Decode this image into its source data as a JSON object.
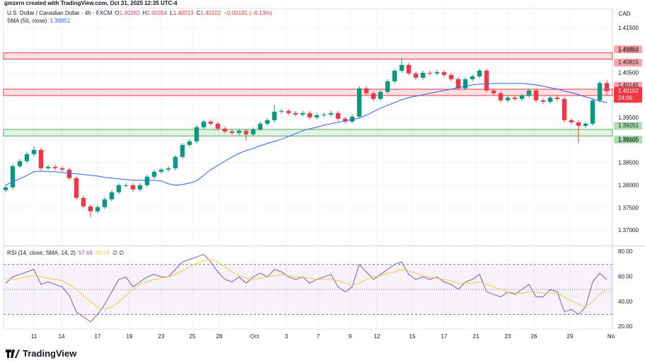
{
  "header": {
    "attribution": "gmzern created with TradingView.com, Oct 31, 2025 12:35 UTC-4"
  },
  "footer": {
    "logo": "TradingView"
  },
  "chart_data": [
    {
      "type": "candlestick",
      "title": "U.S. Dollar / Canadian Dollar · 4h · FXCM",
      "currency": "CAD",
      "ohlc_prefixes": [
        "O",
        "H",
        "L",
        "C"
      ],
      "change_label": "−0.00181 (−0.13%)",
      "countdown": "24:06",
      "up_color": "#089981",
      "down_color": "#f23645",
      "grid": true,
      "open": [
        1.379,
        1.37963,
        1.38435,
        1.38545,
        1.38702,
        1.38796,
        1.38387,
        1.38419,
        1.38387,
        1.38356,
        1.38167,
        1.37727,
        1.37539,
        1.37429,
        1.37523,
        1.37696,
        1.37853,
        1.3801,
        1.3801,
        1.37916,
        1.3801,
        1.38199,
        1.38309,
        1.38356,
        1.38387,
        1.38639,
        1.38906,
        1.38985,
        1.39299,
        1.39425,
        1.39378,
        1.39268,
        1.39205,
        1.39173,
        1.39221,
        1.39142,
        1.39252,
        1.39378,
        1.39456,
        1.39645,
        1.39661,
        1.39614,
        1.39582,
        1.39614,
        1.39519,
        1.39566,
        1.39582,
        1.39614,
        1.39488,
        1.39425,
        1.39535,
        1.40164,
        1.40054,
        1.39928,
        1.40085,
        1.40321,
        1.40557,
        1.40683,
        1.40494,
        1.404,
        1.4051,
        1.40494,
        1.40525,
        1.40463,
        1.40368,
        1.40164,
        1.40368,
        1.40431,
        1.40557,
        1.40117,
        1.40054,
        1.39897,
        1.39959,
        1.39928,
        1.40007,
        1.40117,
        1.39897,
        1.39865,
        1.39959,
        1.39928,
        1.39456,
        1.39409,
        1.39331,
        1.39378,
        1.39897,
        1.40283
      ],
      "high": [
        1.38008,
        1.3848,
        1.3859,
        1.38747,
        1.3888,
        1.38841,
        1.38464,
        1.38464,
        1.38432,
        1.38401,
        1.38212,
        1.37772,
        1.37584,
        1.37568,
        1.37741,
        1.37898,
        1.38055,
        1.38055,
        1.38055,
        1.38055,
        1.38244,
        1.38354,
        1.38401,
        1.38432,
        1.38684,
        1.38951,
        1.3903,
        1.39344,
        1.3947,
        1.3947,
        1.39423,
        1.39313,
        1.3925,
        1.39266,
        1.39266,
        1.39297,
        1.39423,
        1.39501,
        1.398,
        1.39706,
        1.39706,
        1.39659,
        1.39659,
        1.39659,
        1.39611,
        1.39627,
        1.39659,
        1.39659,
        1.39533,
        1.3958,
        1.40209,
        1.40209,
        1.40099,
        1.4013,
        1.40366,
        1.40602,
        1.4085,
        1.40728,
        1.40539,
        1.40555,
        1.40555,
        1.4057,
        1.4057,
        1.40508,
        1.40413,
        1.40413,
        1.40476,
        1.40602,
        1.40602,
        1.40162,
        1.40099,
        1.40004,
        1.40004,
        1.40052,
        1.40162,
        1.40162,
        1.39942,
        1.40004,
        1.40004,
        1.39973,
        1.39501,
        1.39454,
        1.39423,
        1.39942,
        1.40328,
        1.40354
      ],
      "low": [
        1.37855,
        1.37918,
        1.3839,
        1.385,
        1.38657,
        1.38342,
        1.38342,
        1.38342,
        1.38311,
        1.38122,
        1.37682,
        1.37494,
        1.373,
        1.37384,
        1.37478,
        1.37651,
        1.37808,
        1.37965,
        1.37871,
        1.37871,
        1.37965,
        1.38154,
        1.38264,
        1.38311,
        1.38342,
        1.38594,
        1.38861,
        1.3894,
        1.39254,
        1.39333,
        1.39223,
        1.3916,
        1.39128,
        1.39128,
        1.39,
        1.39097,
        1.39207,
        1.39333,
        1.39411,
        1.396,
        1.39569,
        1.39537,
        1.39537,
        1.39474,
        1.39474,
        1.39521,
        1.39537,
        1.39443,
        1.3938,
        1.3938,
        1.3949,
        1.40009,
        1.39883,
        1.39883,
        1.4004,
        1.40276,
        1.40512,
        1.40449,
        1.40355,
        1.40355,
        1.40449,
        1.40449,
        1.40418,
        1.40323,
        1.40119,
        1.40119,
        1.40323,
        1.40386,
        1.40072,
        1.40009,
        1.39852,
        1.39852,
        1.39883,
        1.39883,
        1.39962,
        1.39852,
        1.3982,
        1.3982,
        1.39883,
        1.39411,
        1.39364,
        1.3895,
        1.39286,
        1.39333,
        1.39852,
        1.40013
      ],
      "close": [
        1.37963,
        1.38435,
        1.38545,
        1.38702,
        1.38796,
        1.38387,
        1.38419,
        1.38387,
        1.38356,
        1.38167,
        1.37727,
        1.37539,
        1.37429,
        1.37523,
        1.37696,
        1.37853,
        1.3801,
        1.3801,
        1.37916,
        1.3801,
        1.38199,
        1.38309,
        1.38356,
        1.38387,
        1.38639,
        1.38906,
        1.38985,
        1.39299,
        1.39425,
        1.39378,
        1.39268,
        1.39205,
        1.39173,
        1.39221,
        1.39142,
        1.39252,
        1.39378,
        1.39456,
        1.39645,
        1.39661,
        1.39614,
        1.39582,
        1.39614,
        1.39519,
        1.39566,
        1.39582,
        1.39614,
        1.39488,
        1.39425,
        1.39535,
        1.40164,
        1.40054,
        1.39928,
        1.40085,
        1.40321,
        1.40557,
        1.40683,
        1.40494,
        1.404,
        1.4051,
        1.40494,
        1.40525,
        1.40463,
        1.40368,
        1.40164,
        1.40368,
        1.40431,
        1.40557,
        1.40117,
        1.40054,
        1.39897,
        1.39959,
        1.39928,
        1.40007,
        1.40117,
        1.39897,
        1.39865,
        1.39959,
        1.39928,
        1.39456,
        1.39409,
        1.39331,
        1.39378,
        1.39897,
        1.40283,
        1.40102
      ],
      "overlays": [
        {
          "name": "SMA (50, close)",
          "color": "#2962ff",
          "values": [
            1.3801,
            1.38089,
            1.38152,
            1.3823,
            1.38309,
            1.38325,
            1.38309,
            1.38309,
            1.38293,
            1.38277,
            1.38262,
            1.38246,
            1.3823,
            1.38215,
            1.38183,
            1.38167,
            1.38152,
            1.38136,
            1.3812,
            1.3812,
            1.3812,
            1.3812,
            1.38105,
            1.38042,
            1.3801,
            1.38026,
            1.38057,
            1.38105,
            1.3823,
            1.38356,
            1.3845,
            1.38545,
            1.38639,
            1.38718,
            1.3878,
            1.38828,
            1.38891,
            1.38938,
            1.38985,
            1.39032,
            1.39095,
            1.39158,
            1.39221,
            1.39268,
            1.39299,
            1.39346,
            1.39378,
            1.39409,
            1.39441,
            1.39472,
            1.39504,
            1.39566,
            1.39645,
            1.39724,
            1.39787,
            1.39849,
            1.39912,
            1.39959,
            1.39991,
            1.40022,
            1.40054,
            1.40085,
            1.40117,
            1.40148,
            1.4018,
            1.40211,
            1.40242,
            1.40258,
            1.40258,
            1.40274,
            1.40274,
            1.40274,
            1.40274,
            1.40274,
            1.40258,
            1.40242,
            1.40211,
            1.4018,
            1.40148,
            1.40101,
            1.4007,
            1.40022,
            1.39975,
            1.39928,
            1.39881,
            1.39851
          ]
        }
      ],
      "zones": [
        {
          "low": 1.40815,
          "high": 1.40953,
          "color": "#f23645"
        },
        {
          "low": 1.40004,
          "high": 1.40145,
          "color": "#f23645"
        },
        {
          "low": 1.39105,
          "high": 1.39251,
          "color": "#4caf50"
        }
      ],
      "xlim": [
        -0.3,
        85.8
      ],
      "xticks": [
        {
          "value": 4,
          "label": "11"
        },
        {
          "value": 7.9,
          "label": "14"
        },
        {
          "value": 13,
          "label": "17"
        },
        {
          "value": 17.5,
          "label": "19"
        },
        {
          "value": 22,
          "label": "23"
        },
        {
          "value": 26.4,
          "label": "25"
        },
        {
          "value": 30.2,
          "label": "28"
        },
        {
          "value": 35.2,
          "label": "Oct"
        },
        {
          "value": 39.7,
          "label": "3"
        },
        {
          "value": 44.2,
          "label": "7"
        },
        {
          "value": 48.7,
          "label": "9"
        },
        {
          "value": 52.5,
          "label": "12"
        },
        {
          "value": 57.5,
          "label": "15"
        },
        {
          "value": 62,
          "label": "17"
        },
        {
          "value": 66.5,
          "label": "21"
        },
        {
          "value": 71,
          "label": "23"
        },
        {
          "value": 74.7,
          "label": "26"
        },
        {
          "value": 79.8,
          "label": "29"
        },
        {
          "value": 85.6,
          "label": "No"
        }
      ],
      "ylim": [
        1.367,
        1.4194
      ],
      "yticks": [
        {
          "value": 1.37,
          "label": "1.37000"
        },
        {
          "value": 1.375,
          "label": "1.37500"
        },
        {
          "value": 1.38,
          "label": "1.38000"
        },
        {
          "value": 1.385,
          "label": "1.38500"
        },
        {
          "value": 1.39,
          "label": "1.39000"
        },
        {
          "value": 1.395,
          "label": "1.39500"
        },
        {
          "value": 1.4,
          "label": "1.40000"
        },
        {
          "value": 1.405,
          "label": "1.40500"
        },
        {
          "value": 1.41,
          "label": "1.41000"
        },
        {
          "value": 1.415,
          "label": "1.41500"
        }
      ]
    },
    {
      "type": "line",
      "title": "RSI (14, close, SMA, 14, 2)",
      "na_marks": "∅ ∅",
      "series": [
        {
          "color": "#7e57c2",
          "values": [
            55,
            60,
            62,
            64,
            66,
            54,
            56,
            54,
            52,
            45,
            32,
            28,
            24,
            30,
            38,
            48,
            58,
            60,
            52,
            56,
            60,
            62,
            60,
            60,
            66,
            72,
            74,
            76,
            78,
            72,
            64,
            58,
            56,
            60,
            55,
            60,
            63,
            60,
            66,
            64,
            60,
            58,
            60,
            55,
            58,
            60,
            62,
            52,
            48,
            52,
            70,
            64,
            58,
            62,
            66,
            70,
            72,
            62,
            58,
            60,
            58,
            60,
            56,
            54,
            50,
            56,
            58,
            62,
            48,
            46,
            44,
            48,
            46,
            50,
            54,
            44,
            44,
            50,
            48,
            32,
            34,
            30,
            36,
            56,
            63,
            57.69
          ]
        },
        {
          "color": "#f7c84a",
          "values": [
            58,
            58,
            59,
            60,
            61,
            60,
            59,
            58,
            57,
            54,
            50,
            45,
            40,
            36,
            34,
            36,
            40,
            45,
            50,
            54,
            56,
            58,
            59,
            60,
            62,
            65,
            68,
            71,
            73,
            74,
            72,
            68,
            64,
            61,
            59,
            58,
            59,
            60,
            61,
            62,
            61,
            60,
            60,
            59,
            58,
            58,
            58,
            57,
            55,
            53,
            55,
            58,
            60,
            61,
            63,
            64,
            66,
            65,
            63,
            61,
            60,
            59,
            58,
            57,
            55,
            55,
            55,
            56,
            54,
            52,
            50,
            48,
            47,
            47,
            48,
            48,
            47,
            47,
            47,
            44,
            41,
            38,
            36,
            40,
            46,
            49.54
          ]
        }
      ],
      "levels": [
        70,
        50,
        30
      ],
      "band_color": "#7e57c2",
      "xlim": [
        -0.3,
        85.8
      ],
      "ylim": [
        18.3,
        83.4
      ],
      "yticks": [
        {
          "value": 20,
          "label": "20.00"
        },
        {
          "value": 40,
          "label": "40.00"
        },
        {
          "value": 60,
          "label": "60.00"
        },
        {
          "value": 80,
          "label": "80.00"
        }
      ]
    }
  ]
}
